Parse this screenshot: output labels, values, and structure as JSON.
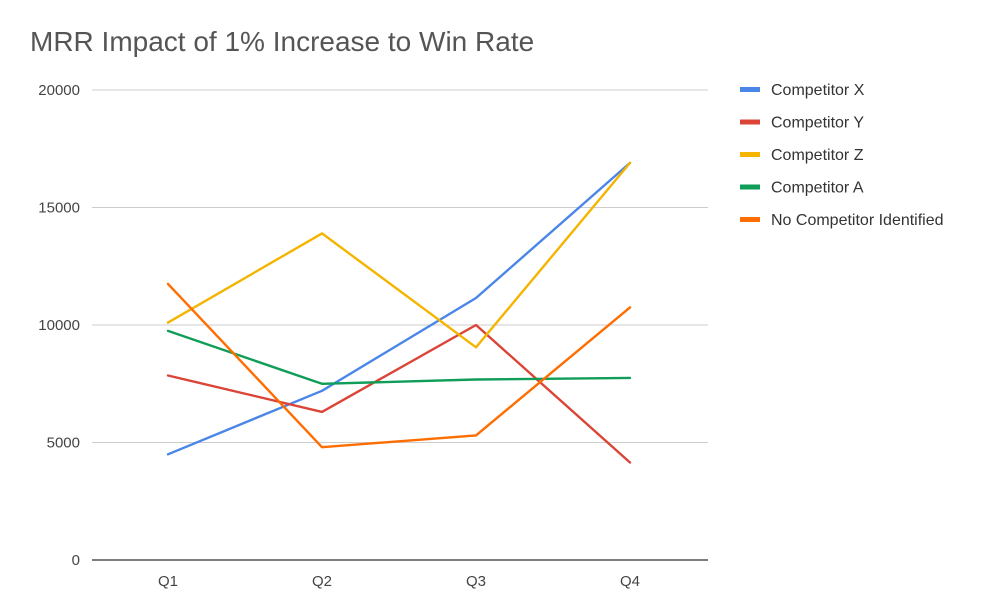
{
  "chart_data": {
    "type": "line",
    "title": "MRR Impact of 1% Increase to Win Rate",
    "xlabel": "",
    "ylabel": "",
    "categories": [
      "Q1",
      "Q2",
      "Q3",
      "Q4"
    ],
    "ylim": [
      0,
      20000
    ],
    "yticks": [
      "0",
      "5000",
      "10000",
      "15000",
      "20000"
    ],
    "grid": true,
    "legend_position": "right",
    "series": [
      {
        "name": "Competitor X",
        "color": "#4a86e8",
        "values": [
          4500,
          7200,
          11150,
          16900
        ]
      },
      {
        "name": "Competitor Y",
        "color": "#db4437",
        "values": [
          7850,
          6300,
          10000,
          4150
        ]
      },
      {
        "name": "Competitor Z",
        "color": "#f4b400",
        "values": [
          10100,
          13900,
          9050,
          16900
        ]
      },
      {
        "name": "Competitor A",
        "color": "#0f9d58",
        "values": [
          9750,
          7500,
          7680,
          7750
        ]
      },
      {
        "name": "No Competitor Identified",
        "color": "#ff6d01",
        "values": [
          11750,
          4800,
          5300,
          10750
        ]
      }
    ]
  }
}
